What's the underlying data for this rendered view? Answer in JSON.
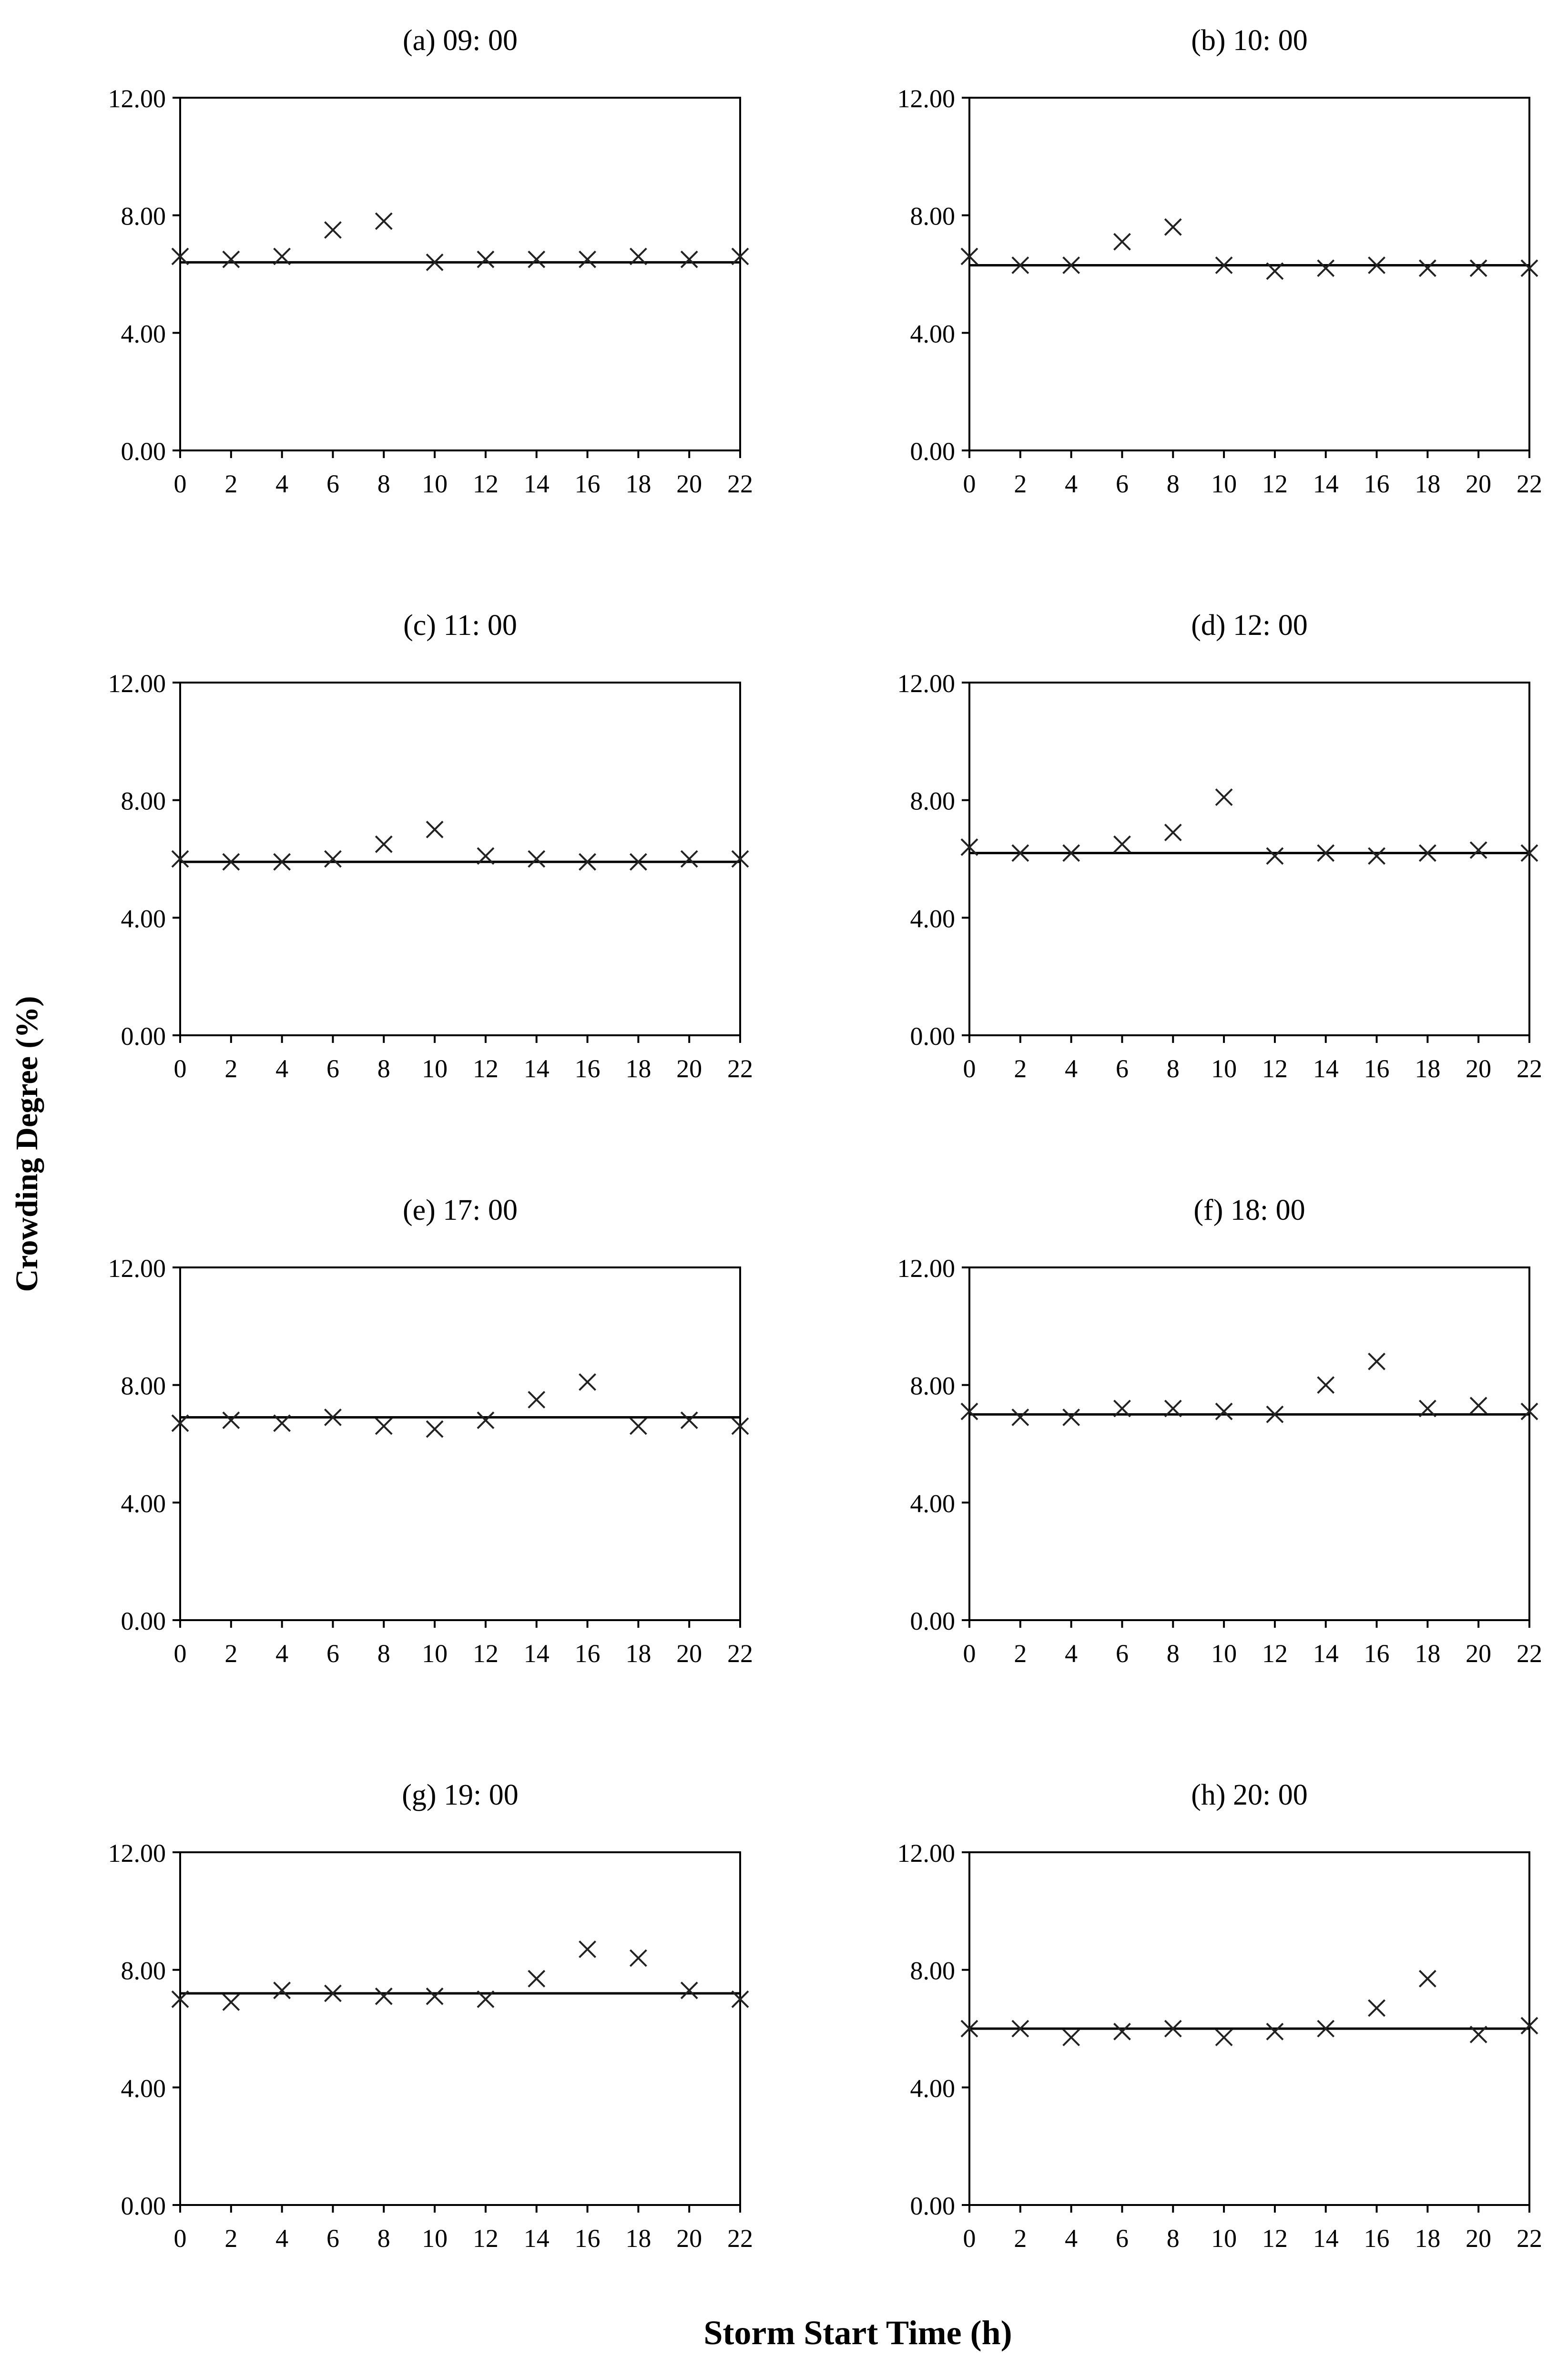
{
  "figure": {
    "y_label": "Crowding Degree (%)",
    "x_label": "Storm Start Time (h)"
  },
  "chart_data": [
    {
      "type": "scatter",
      "title": "(a) 09: 00",
      "xlabel": "",
      "ylabel": "",
      "x": [
        0,
        2,
        4,
        6,
        8,
        10,
        12,
        14,
        16,
        18,
        20,
        22
      ],
      "xticks": [
        "0",
        "2",
        "4",
        "6",
        "8",
        "10",
        "12",
        "14",
        "16",
        "18",
        "20",
        "22"
      ],
      "yticks": [
        "0.00",
        "4.00",
        "8.00",
        "12.00"
      ],
      "ylim": [
        0,
        12
      ],
      "marker": "x",
      "values": [
        6.6,
        6.5,
        6.6,
        7.5,
        7.8,
        6.4,
        6.5,
        6.5,
        6.5,
        6.6,
        6.5,
        6.6
      ],
      "reference_line": 6.4
    },
    {
      "type": "scatter",
      "title": "(b) 10: 00",
      "xlabel": "",
      "ylabel": "",
      "x": [
        0,
        2,
        4,
        6,
        8,
        10,
        12,
        14,
        16,
        18,
        20,
        22
      ],
      "xticks": [
        "0",
        "2",
        "4",
        "6",
        "8",
        "10",
        "12",
        "14",
        "16",
        "18",
        "20",
        "22"
      ],
      "yticks": [
        "0.00",
        "4.00",
        "8.00",
        "12.00"
      ],
      "ylim": [
        0,
        12
      ],
      "marker": "x",
      "values": [
        6.6,
        6.3,
        6.3,
        7.1,
        7.6,
        6.3,
        6.1,
        6.2,
        6.3,
        6.2,
        6.2,
        6.2
      ],
      "reference_line": 6.3
    },
    {
      "type": "scatter",
      "title": "(c) 11: 00",
      "xlabel": "",
      "ylabel": "",
      "x": [
        0,
        2,
        4,
        6,
        8,
        10,
        12,
        14,
        16,
        18,
        20,
        22
      ],
      "xticks": [
        "0",
        "2",
        "4",
        "6",
        "8",
        "10",
        "12",
        "14",
        "16",
        "18",
        "20",
        "22"
      ],
      "yticks": [
        "0.00",
        "4.00",
        "8.00",
        "12.00"
      ],
      "ylim": [
        0,
        12
      ],
      "marker": "x",
      "values": [
        6.0,
        5.9,
        5.9,
        6.0,
        6.5,
        7.0,
        6.1,
        6.0,
        5.9,
        5.9,
        6.0,
        6.0
      ],
      "reference_line": 5.9
    },
    {
      "type": "scatter",
      "title": "(d) 12: 00",
      "xlabel": "",
      "ylabel": "",
      "x": [
        0,
        2,
        4,
        6,
        8,
        10,
        12,
        14,
        16,
        18,
        20,
        22
      ],
      "xticks": [
        "0",
        "2",
        "4",
        "6",
        "8",
        "10",
        "12",
        "14",
        "16",
        "18",
        "20",
        "22"
      ],
      "yticks": [
        "0.00",
        "4.00",
        "8.00",
        "12.00"
      ],
      "ylim": [
        0,
        12
      ],
      "marker": "x",
      "values": [
        6.4,
        6.2,
        6.2,
        6.5,
        6.9,
        8.1,
        6.1,
        6.2,
        6.1,
        6.2,
        6.3,
        6.2
      ],
      "reference_line": 6.2
    },
    {
      "type": "scatter",
      "title": "(e) 17: 00",
      "xlabel": "",
      "ylabel": "",
      "x": [
        0,
        2,
        4,
        6,
        8,
        10,
        12,
        14,
        16,
        18,
        20,
        22
      ],
      "xticks": [
        "0",
        "2",
        "4",
        "6",
        "8",
        "10",
        "12",
        "14",
        "16",
        "18",
        "20",
        "22"
      ],
      "yticks": [
        "0.00",
        "4.00",
        "8.00",
        "12.00"
      ],
      "ylim": [
        0,
        12
      ],
      "marker": "x",
      "values": [
        6.7,
        6.8,
        6.7,
        6.9,
        6.6,
        6.5,
        6.8,
        7.5,
        8.1,
        6.6,
        6.8,
        6.6
      ],
      "reference_line": 6.9
    },
    {
      "type": "scatter",
      "title": "(f) 18: 00",
      "xlabel": "",
      "ylabel": "",
      "x": [
        0,
        2,
        4,
        6,
        8,
        10,
        12,
        14,
        16,
        18,
        20,
        22
      ],
      "xticks": [
        "0",
        "2",
        "4",
        "6",
        "8",
        "10",
        "12",
        "14",
        "16",
        "18",
        "20",
        "22"
      ],
      "yticks": [
        "0.00",
        "4.00",
        "8.00",
        "12.00"
      ],
      "ylim": [
        0,
        12
      ],
      "marker": "x",
      "values": [
        7.1,
        6.9,
        6.9,
        7.2,
        7.2,
        7.1,
        7.0,
        8.0,
        8.8,
        7.2,
        7.3,
        7.1
      ],
      "reference_line": 7.0
    },
    {
      "type": "scatter",
      "title": "(g) 19: 00",
      "xlabel": "",
      "ylabel": "",
      "x": [
        0,
        2,
        4,
        6,
        8,
        10,
        12,
        14,
        16,
        18,
        20,
        22
      ],
      "xticks": [
        "0",
        "2",
        "4",
        "6",
        "8",
        "10",
        "12",
        "14",
        "16",
        "18",
        "20",
        "22"
      ],
      "yticks": [
        "0.00",
        "4.00",
        "8.00",
        "12.00"
      ],
      "ylim": [
        0,
        12
      ],
      "marker": "x",
      "values": [
        7.0,
        6.9,
        7.3,
        7.2,
        7.1,
        7.1,
        7.0,
        7.7,
        8.7,
        8.4,
        7.3,
        7.0
      ],
      "reference_line": 7.2
    },
    {
      "type": "scatter",
      "title": "(h) 20: 00",
      "xlabel": "",
      "ylabel": "",
      "x": [
        0,
        2,
        4,
        6,
        8,
        10,
        12,
        14,
        16,
        18,
        20,
        22
      ],
      "xticks": [
        "0",
        "2",
        "4",
        "6",
        "8",
        "10",
        "12",
        "14",
        "16",
        "18",
        "20",
        "22"
      ],
      "yticks": [
        "0.00",
        "4.00",
        "8.00",
        "12.00"
      ],
      "ylim": [
        0,
        12
      ],
      "marker": "x",
      "values": [
        6.0,
        6.0,
        5.7,
        5.9,
        6.0,
        5.7,
        5.9,
        6.0,
        6.7,
        7.7,
        5.8,
        6.1
      ],
      "reference_line": 6.0
    }
  ]
}
